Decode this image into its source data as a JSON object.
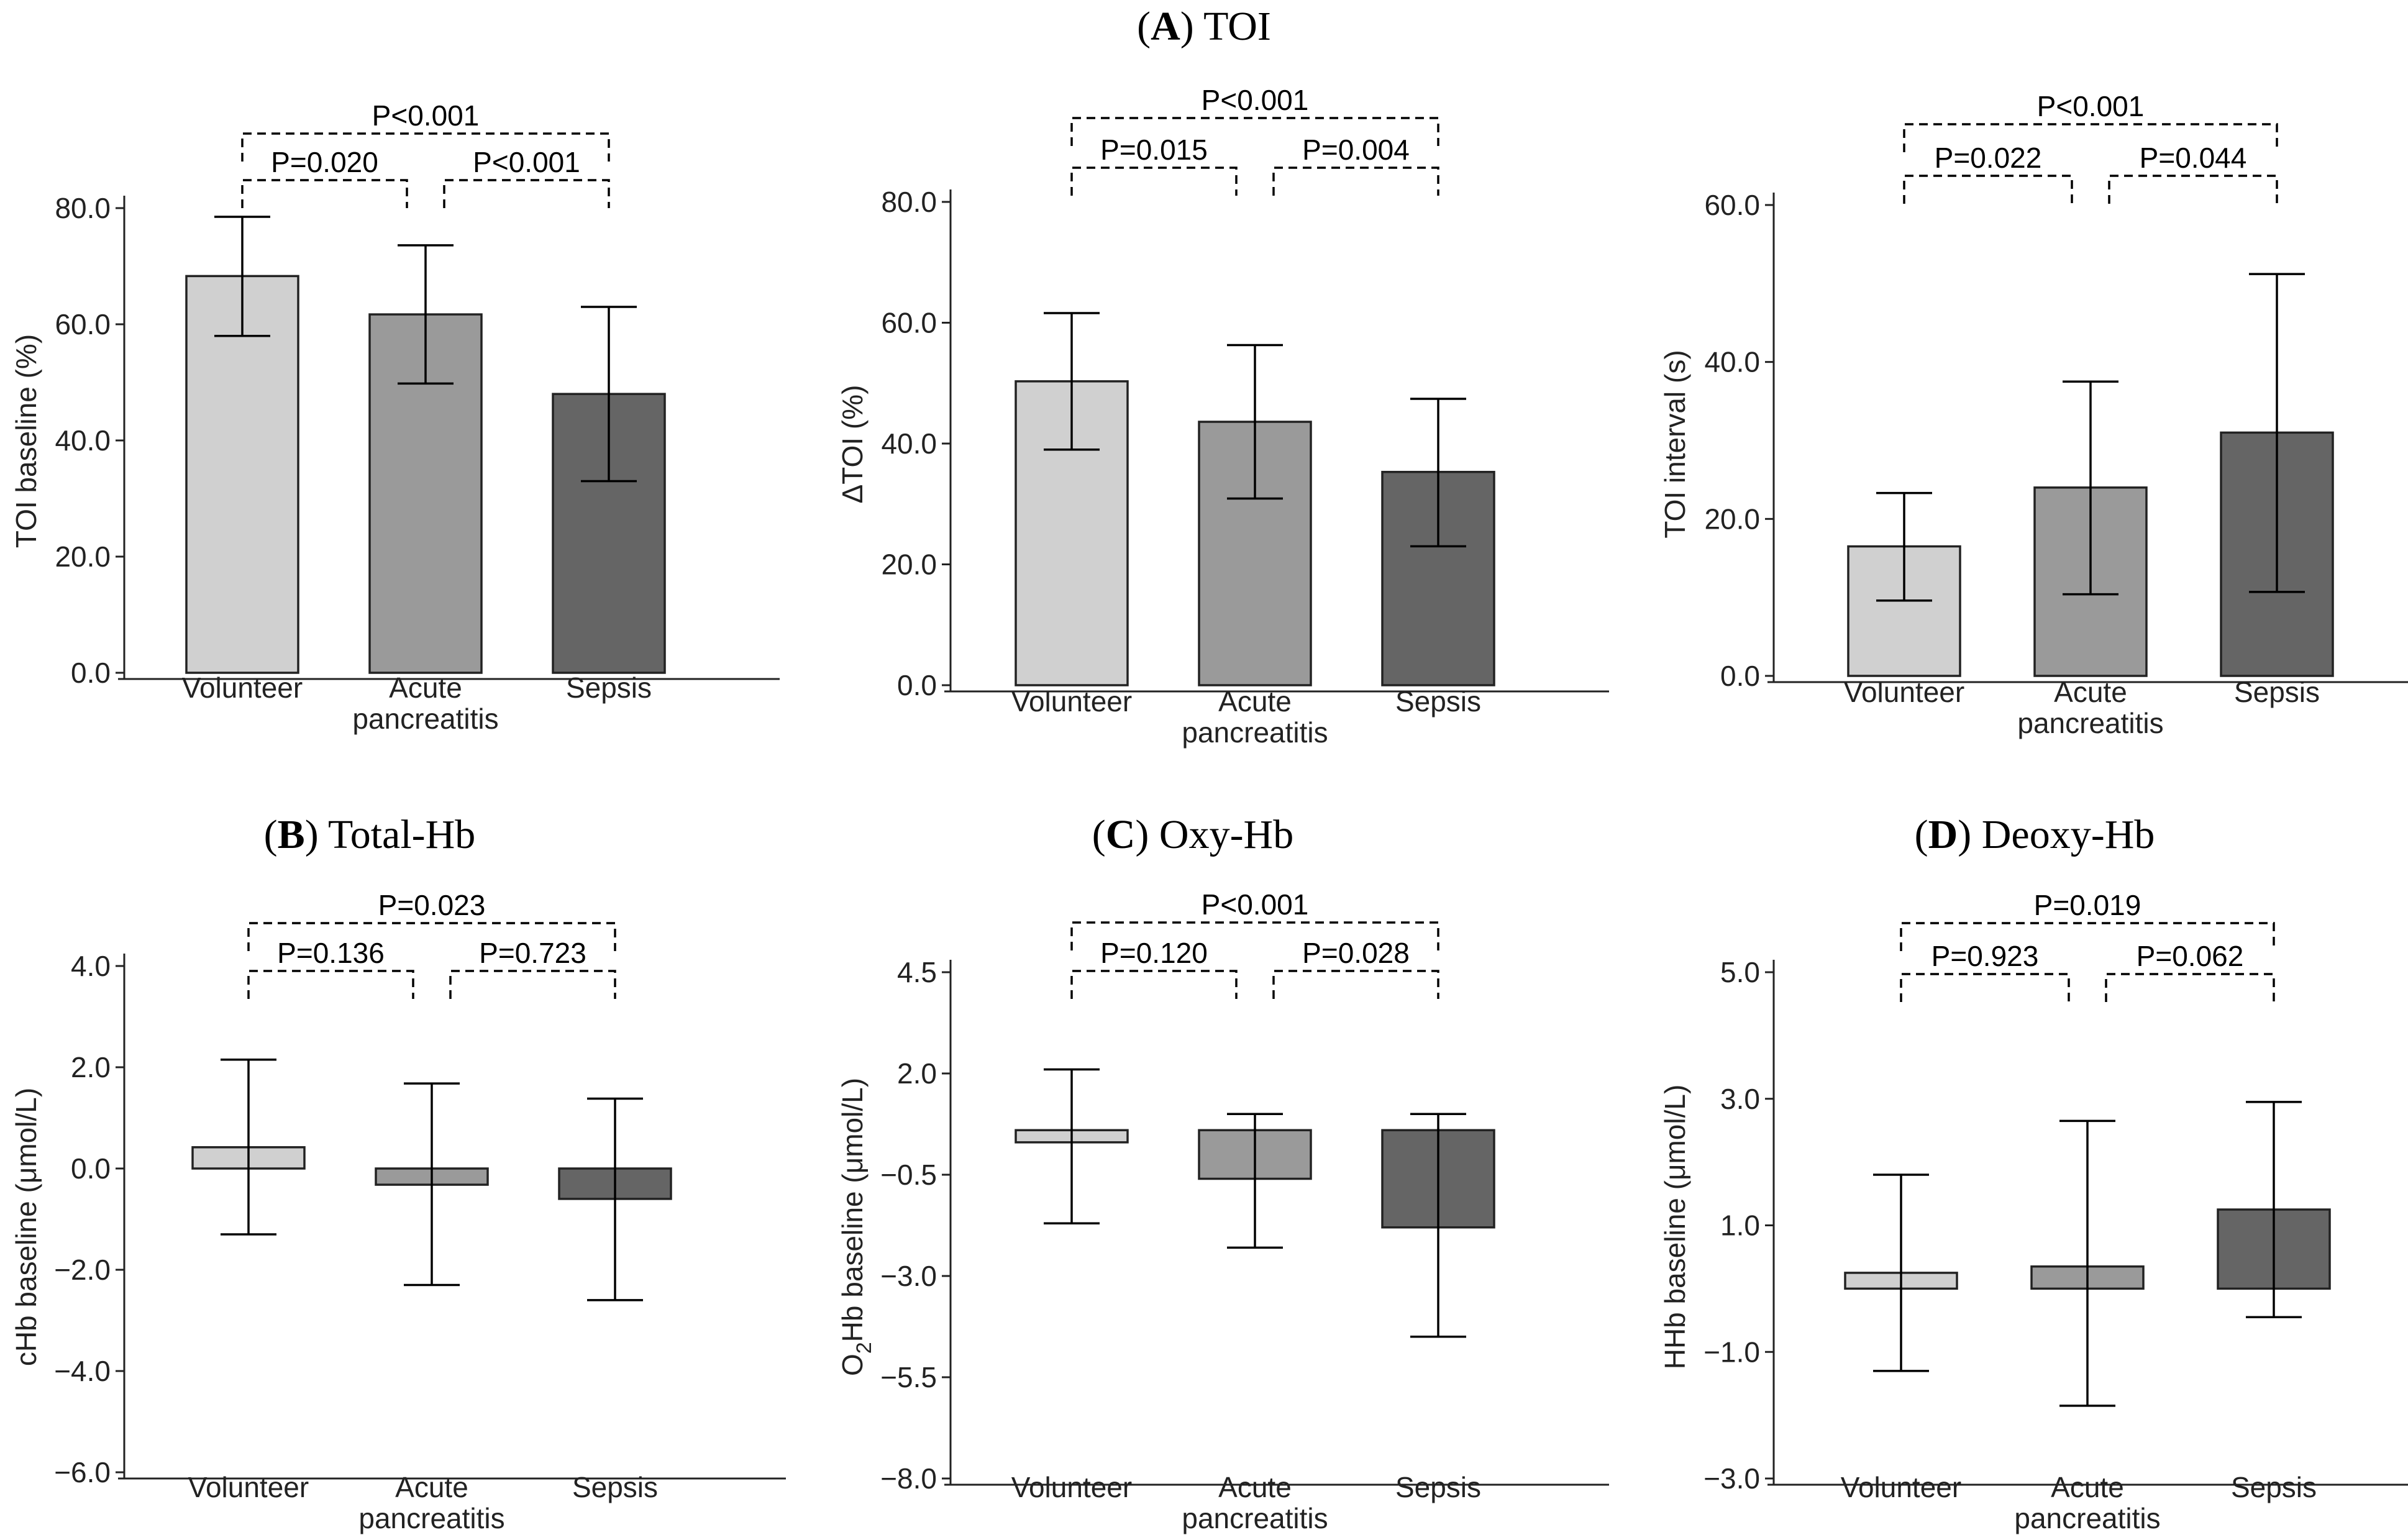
{
  "figure": {
    "section_a": {
      "letter": "A",
      "name": "TOI"
    },
    "section_b": {
      "letter": "B",
      "name": "Total-Hb"
    },
    "section_c": {
      "letter": "C",
      "name": "Oxy-Hb"
    },
    "section_d": {
      "letter": "D",
      "name": "Deoxy-Hb"
    }
  },
  "colors": {
    "Volunteer": "#d0d0d0",
    "Acute pancreatitis": "#9a9a9a",
    "Sepsis": "#656565",
    "stroke": "#222222"
  },
  "chart_data": [
    {
      "id": "toi_baseline",
      "type": "bar",
      "title": "",
      "ylabel": "TOI baseline (%)",
      "categories": [
        {
          "line1": "Volunteer",
          "line2": ""
        },
        {
          "line1": "Acute",
          "line2": "pancreatitis"
        },
        {
          "line1": "Sepsis",
          "line2": ""
        }
      ],
      "values": [
        68.3,
        61.7,
        48.0
      ],
      "err_low": [
        58.0,
        49.8,
        33.0
      ],
      "err_high": [
        78.5,
        73.6,
        63.0
      ],
      "ylim": [
        0,
        80
      ],
      "yticks": [
        {
          "v": 0,
          "label": "0.0"
        },
        {
          "v": 20,
          "label": "20.0"
        },
        {
          "v": 40,
          "label": "40.0"
        },
        {
          "v": 60,
          "label": "60.0"
        },
        {
          "v": 80,
          "label": "80.0"
        }
      ],
      "pvalues": [
        "P=0.020",
        "P<0.001",
        "P<0.001"
      ]
    },
    {
      "id": "delta_toi",
      "type": "bar",
      "title": "",
      "ylabel": "ΔTOI (%)",
      "categories": [
        {
          "line1": "Volunteer",
          "line2": ""
        },
        {
          "line1": "Acute",
          "line2": "pancreatitis"
        },
        {
          "line1": "Sepsis",
          "line2": ""
        }
      ],
      "values": [
        50.3,
        43.6,
        35.3
      ],
      "err_low": [
        39.0,
        30.9,
        23.0
      ],
      "err_high": [
        61.6,
        56.3,
        47.4
      ],
      "ylim": [
        0,
        80
      ],
      "yticks": [
        {
          "v": 0,
          "label": "0.0"
        },
        {
          "v": 20,
          "label": "20.0"
        },
        {
          "v": 40,
          "label": "40.0"
        },
        {
          "v": 60,
          "label": "60.0"
        },
        {
          "v": 80,
          "label": "80.0"
        }
      ],
      "pvalues": [
        "P=0.015",
        "P=0.004",
        "P<0.001"
      ]
    },
    {
      "id": "toi_interval",
      "type": "bar",
      "title": "",
      "ylabel": "TOI interval (s)",
      "categories": [
        {
          "line1": "Volunteer",
          "line2": ""
        },
        {
          "line1": "Acute",
          "line2": "pancreatitis"
        },
        {
          "line1": "Sepsis",
          "line2": ""
        }
      ],
      "values": [
        16.5,
        24.0,
        31.0
      ],
      "err_low": [
        9.6,
        10.4,
        10.7
      ],
      "err_high": [
        23.3,
        37.5,
        51.2
      ],
      "ylim": [
        0,
        60
      ],
      "yticks": [
        {
          "v": 0,
          "label": "0.0"
        },
        {
          "v": 20,
          "label": "20.0"
        },
        {
          "v": 40,
          "label": "40.0"
        },
        {
          "v": 60,
          "label": "60.0"
        }
      ],
      "pvalues": [
        "P=0.022",
        "P=0.044",
        "P<0.001"
      ]
    },
    {
      "id": "chb_baseline",
      "type": "bar",
      "title": "",
      "ylabel": "cHb baseline (μmol/L)",
      "categories": [
        {
          "line1": "Volunteer",
          "line2": ""
        },
        {
          "line1": "Acute",
          "line2": "pancreatitis"
        },
        {
          "line1": "Sepsis",
          "line2": ""
        }
      ],
      "values": [
        0.42,
        -0.32,
        -0.6
      ],
      "err_low": [
        -1.3,
        -2.3,
        -2.6
      ],
      "err_high": [
        2.15,
        1.68,
        1.38
      ],
      "ylim": [
        -6,
        4
      ],
      "yticks": [
        {
          "v": -6,
          "label": "−6.0"
        },
        {
          "v": -4,
          "label": "−4.0"
        },
        {
          "v": -2,
          "label": "−2.0"
        },
        {
          "v": 0,
          "label": "0.0"
        },
        {
          "v": 2,
          "label": "2.0"
        },
        {
          "v": 4,
          "label": "4.0"
        }
      ],
      "pvalues": [
        "P=0.136",
        "P=0.723",
        "P=0.023"
      ]
    },
    {
      "id": "o2hb_baseline",
      "type": "bar",
      "title": "",
      "ylabel": "O2Hb baseline (μmol/L)",
      "ylabel_parts": [
        "O",
        "2",
        "Hb baseline (μmol/L)"
      ],
      "categories": [
        {
          "line1": "Volunteer",
          "line2": ""
        },
        {
          "line1": "Acute",
          "line2": "pancreatitis"
        },
        {
          "line1": "Sepsis",
          "line2": ""
        }
      ],
      "values": [
        0.3,
        -0.6,
        -1.8
      ],
      "err_low": [
        -1.7,
        -2.3,
        -4.5
      ],
      "err_high": [
        2.1,
        1.0,
        1.0
      ],
      "base": 0.6,
      "ylim": [
        -8,
        4.5
      ],
      "yticks": [
        {
          "v": -8,
          "label": "−8.0"
        },
        {
          "v": -5.5,
          "label": "−5.5"
        },
        {
          "v": -3,
          "label": "−3.0"
        },
        {
          "v": -0.5,
          "label": "−0.5"
        },
        {
          "v": 2,
          "label": "2.0"
        },
        {
          "v": 4.5,
          "label": "4.5"
        }
      ],
      "pvalues": [
        "P=0.120",
        "P=0.028",
        "P<0.001"
      ]
    },
    {
      "id": "hhb_baseline",
      "type": "bar",
      "title": "",
      "ylabel": "HHb baseline (μmol/L)",
      "categories": [
        {
          "line1": "Volunteer",
          "line2": ""
        },
        {
          "line1": "Acute",
          "line2": "pancreatitis"
        },
        {
          "line1": "Sepsis",
          "line2": ""
        }
      ],
      "values": [
        0.25,
        0.35,
        1.25
      ],
      "err_low": [
        -1.3,
        -1.85,
        -0.45
      ],
      "err_high": [
        1.8,
        2.65,
        2.95
      ],
      "ylim": [
        -3,
        5
      ],
      "yticks": [
        {
          "v": -3,
          "label": "−3.0"
        },
        {
          "v": -1,
          "label": "−1.0"
        },
        {
          "v": 1,
          "label": "1.0"
        },
        {
          "v": 3,
          "label": "3.0"
        },
        {
          "v": 5,
          "label": "5.0"
        }
      ],
      "pvalues": [
        "P=0.923",
        "P=0.062",
        "P=0.019"
      ]
    }
  ]
}
